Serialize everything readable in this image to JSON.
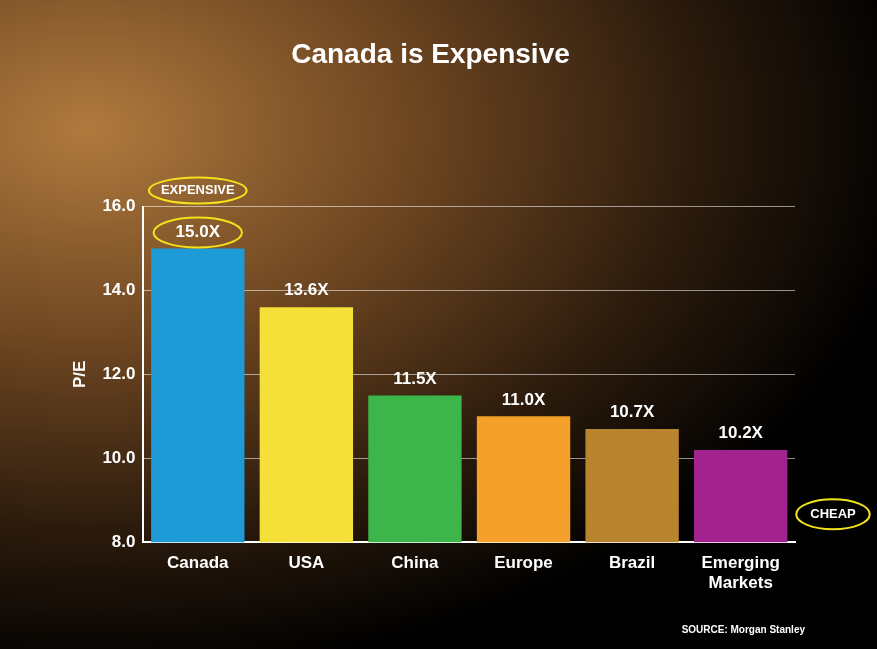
{
  "chart_data": {
    "type": "bar",
    "title": "Canada is Expensive",
    "y_label": "P/E",
    "categories": [
      "Canada",
      "USA",
      "China",
      "Europe",
      "Brazil",
      "Emerging Markets"
    ],
    "values": [
      15.0,
      13.6,
      11.5,
      11.0,
      10.7,
      10.2
    ],
    "value_labels": [
      "15.0X",
      "13.6X",
      "11.5X",
      "11.0X",
      "10.7X",
      "10.2X"
    ],
    "colors": [
      "#1e9ad6",
      "#f5e03a",
      "#3cb54a",
      "#f5a02a",
      "#b8842e",
      "#a3238e"
    ],
    "ylim": [
      8,
      16
    ],
    "yticks": [
      {
        "value": 8,
        "label": "8.0"
      },
      {
        "value": 10,
        "label": "10.0"
      },
      {
        "value": 12,
        "label": "12.0"
      },
      {
        "value": 14,
        "label": "14.0"
      },
      {
        "value": 16,
        "label": "16.0"
      }
    ],
    "grid": true,
    "data_labels": true,
    "annotations": [
      "EXPENSIVE",
      "CHEAP"
    ],
    "source": "SOURCE: Morgan Stanley"
  }
}
